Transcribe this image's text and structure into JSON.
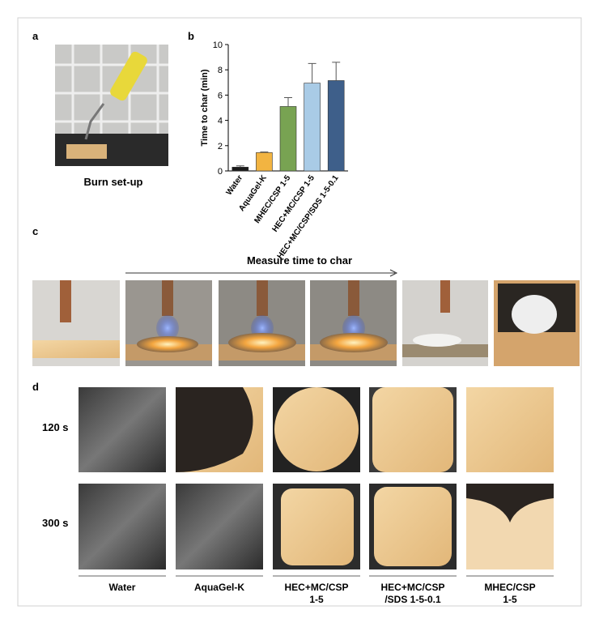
{
  "panel_labels": [
    "a",
    "b",
    "c",
    "d"
  ],
  "panel_a": {
    "caption": "Burn set-up"
  },
  "chart_data": {
    "type": "bar",
    "ylabel": "Time to char (min)",
    "categories": [
      "Water",
      "AquaGel-K",
      "MHEC/CSP 1-5",
      "HEC+MC/CSP 1-5",
      "HEC+MC/CSP/SDS 1-5-0.1"
    ],
    "values": [
      0.3,
      1.45,
      5.1,
      6.95,
      7.15
    ],
    "errors": [
      0.1,
      0.05,
      0.7,
      1.55,
      1.45
    ],
    "colors": [
      "#1a1a1a",
      "#f2b441",
      "#78a352",
      "#a9cbe6",
      "#3e5f8a"
    ],
    "ylim": [
      0,
      10
    ],
    "yticks": [
      0,
      2,
      4,
      6,
      8,
      10
    ]
  },
  "panel_c": {
    "arrow_label": "Measure time to char"
  },
  "panel_d": {
    "row_labels": [
      "120 s",
      "300 s"
    ],
    "column_labels": [
      [
        "Water"
      ],
      [
        "AquaGel-K"
      ],
      [
        "HEC+MC/CSP",
        "1-5"
      ],
      [
        "HEC+MC/CSP",
        "/SDS 1-5-0.1"
      ],
      [
        "MHEC/CSP",
        "1-5"
      ]
    ]
  }
}
